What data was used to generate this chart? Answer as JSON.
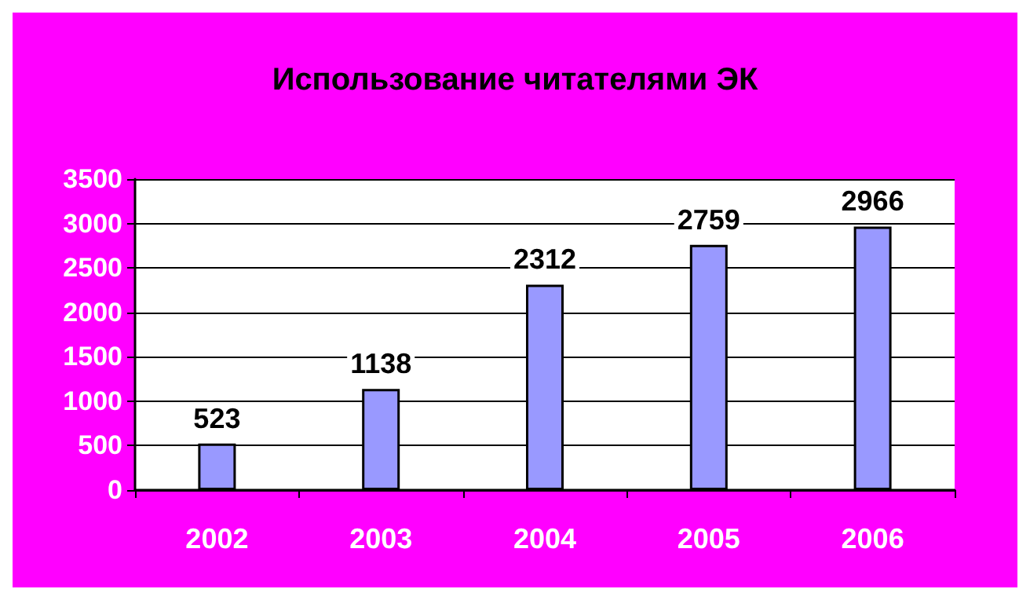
{
  "chart_data": {
    "type": "bar",
    "title": "Использование читателями ЭК",
    "categories": [
      "2002",
      "2003",
      "2004",
      "2005",
      "2006"
    ],
    "values": [
      523,
      1138,
      2312,
      2759,
      2966
    ],
    "color": "#9999ff",
    "ylim": [
      0,
      3500
    ],
    "yticks": [
      0,
      500,
      1000,
      1500,
      2000,
      2500,
      3000,
      3500
    ],
    "grid": "y",
    "data_labels": true
  }
}
